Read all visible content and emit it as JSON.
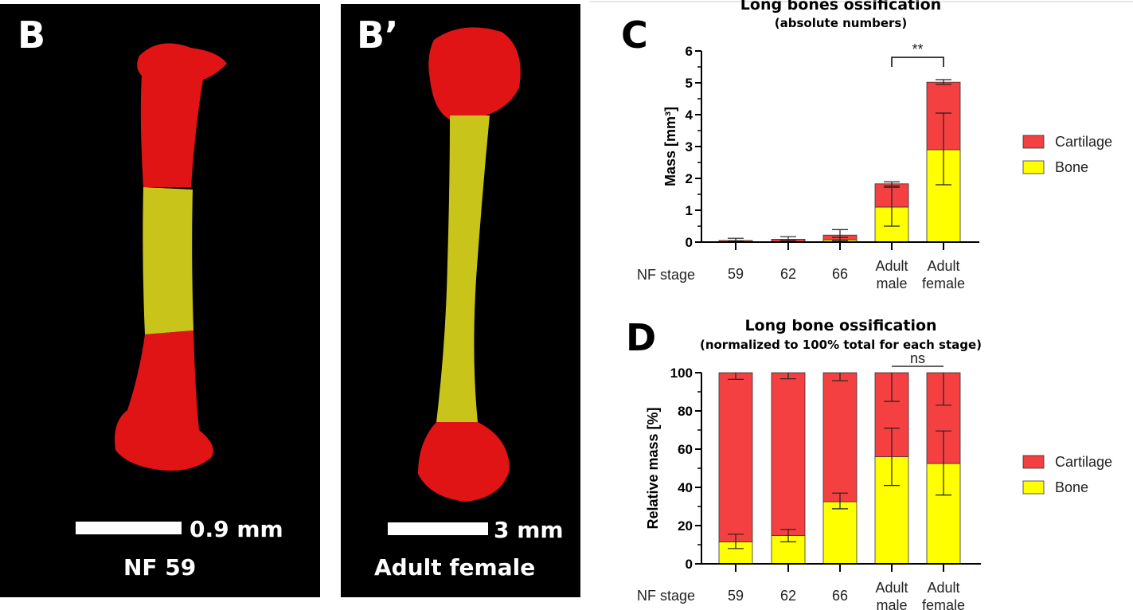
{
  "panels": {
    "B": {
      "letter": "B",
      "scale_label": "0.9 mm",
      "caption": "NF 59"
    },
    "B_prime": {
      "letter": "B’",
      "scale_label": "3 mm",
      "caption": "Adult female"
    }
  },
  "colors": {
    "cartilage": "#f44040",
    "bone": "#ffff00",
    "bone_render": "#c8c41a",
    "cartilage_render": "#e01414"
  },
  "chart_data": [
    {
      "panel": "C",
      "type": "bar",
      "stacked": true,
      "title": "Long bones ossification",
      "subtitle": "(absolute numbers)",
      "xlabel": "NF stage",
      "ylabel": "Mass [mm³]",
      "ylim": [
        0,
        6
      ],
      "yticks": [
        "0",
        "1",
        "2",
        "3",
        "4",
        "5",
        "6"
      ],
      "categories": [
        "59",
        "62",
        "66",
        "Adult male",
        "Adult female"
      ],
      "category_lines": [
        [
          "59"
        ],
        [
          "62"
        ],
        [
          "66"
        ],
        [
          "Adult",
          "male"
        ],
        [
          "Adult",
          "female"
        ]
      ],
      "series": [
        {
          "name": "Bone",
          "values": [
            0.01,
            0.02,
            0.07,
            1.1,
            2.9
          ],
          "err_low": [
            0.0,
            0.0,
            0.0,
            0.5,
            1.8
          ],
          "err_high": [
            0.03,
            0.05,
            0.15,
            1.72,
            4.05
          ]
        },
        {
          "name": "Cartilage",
          "values": [
            0.04,
            0.07,
            0.15,
            0.73,
            2.12
          ],
          "err_low": [
            0.0,
            0.0,
            0.05,
            1.76,
            4.95
          ],
          "err_high": [
            0.12,
            0.17,
            0.39,
            1.89,
            5.1
          ]
        }
      ],
      "significance": {
        "label": "**",
        "between": [
          "Adult male",
          "Adult female"
        ]
      },
      "legend": [
        "Cartilage",
        "Bone"
      ],
      "legend_position": "right"
    },
    {
      "panel": "D",
      "type": "bar",
      "stacked": true,
      "title": "Long bone ossification",
      "subtitle": "(normalized to 100% total for each stage)",
      "xlabel": "NF stage",
      "ylabel": "Relative mass [%]",
      "ylim": [
        0,
        100
      ],
      "yticks": [
        "0",
        "20",
        "40",
        "60",
        "80",
        "100"
      ],
      "categories": [
        "59",
        "62",
        "66",
        "Adult male",
        "Adult female"
      ],
      "category_lines": [
        [
          "59"
        ],
        [
          "62"
        ],
        [
          "66"
        ],
        [
          "Adult",
          "male"
        ],
        [
          "Adult",
          "female"
        ]
      ],
      "series": [
        {
          "name": "Bone",
          "values": [
            11.5,
            14.8,
            32.5,
            56,
            52.5
          ],
          "err_low": [
            8,
            11.5,
            28.8,
            41,
            36
          ],
          "err_high": [
            15.5,
            18,
            37,
            71,
            69.5
          ]
        },
        {
          "name": "Cartilage",
          "values": [
            88.5,
            85.2,
            67.5,
            44,
            47.5
          ],
          "err_low": [
            96.5,
            96.8,
            95.8,
            85,
            83
          ],
          "err_high": [
            100,
            100,
            100,
            100,
            100
          ]
        }
      ],
      "significance": {
        "label": "ns",
        "between": [
          "Adult male",
          "Adult female"
        ]
      },
      "legend": [
        "Cartilage",
        "Bone"
      ],
      "legend_position": "right"
    }
  ]
}
